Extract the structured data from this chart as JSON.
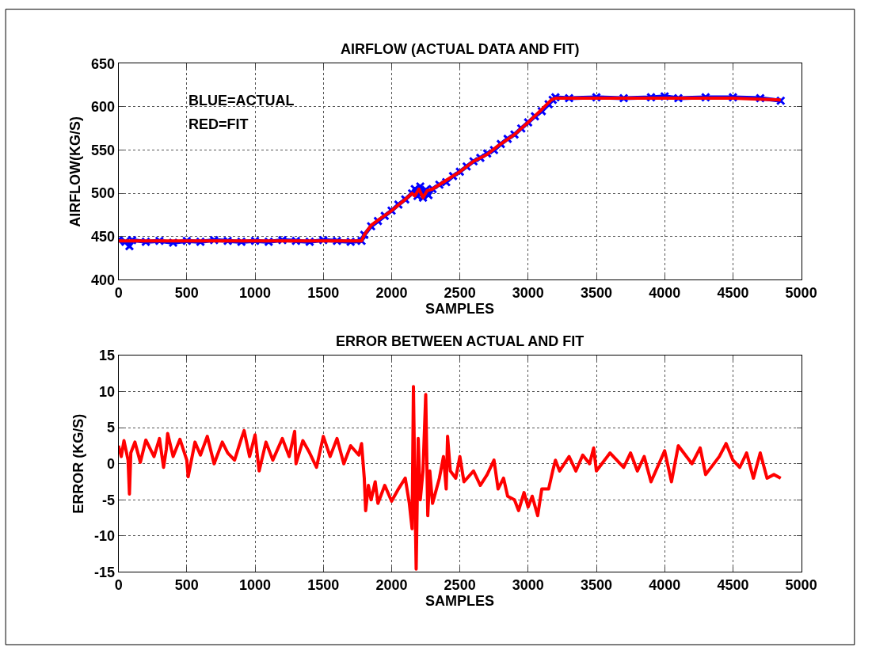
{
  "chart_data": [
    {
      "type": "line",
      "title": "AIRFLOW (ACTUAL DATA AND FIT)",
      "xlabel": "SAMPLES",
      "ylabel": "AIRFLOW(KG/S)",
      "xlim": [
        0,
        5000
      ],
      "ylim": [
        400,
        650
      ],
      "xticks": [
        0,
        500,
        1000,
        1500,
        2000,
        2500,
        3000,
        3500,
        4000,
        4500,
        5000
      ],
      "yticks": [
        400,
        450,
        500,
        550,
        600,
        650
      ],
      "grid": true,
      "line_style": "solid",
      "annotations": [
        "BLUE=ACTUAL",
        "RED=FIT"
      ],
      "series": [
        {
          "color": "#0000ff",
          "marker": "cross",
          "x": [
            0,
            50,
            80,
            100,
            200,
            300,
            400,
            500,
            600,
            700,
            800,
            900,
            1000,
            1100,
            1200,
            1300,
            1400,
            1500,
            1600,
            1700,
            1780,
            1800,
            1850,
            1900,
            1950,
            2000,
            2050,
            2100,
            2150,
            2170,
            2190,
            2210,
            2230,
            2250,
            2270,
            2300,
            2350,
            2400,
            2450,
            2500,
            2550,
            2600,
            2650,
            2700,
            2750,
            2800,
            2850,
            2900,
            2950,
            3000,
            3050,
            3100,
            3150,
            3180,
            3200,
            3300,
            3500,
            3700,
            3900,
            4000,
            4100,
            4300,
            4500,
            4700,
            4850
          ],
          "values": [
            446,
            444,
            439,
            446,
            444,
            445,
            443,
            445,
            444,
            446,
            445,
            444,
            445,
            444,
            446,
            445,
            444,
            446,
            445,
            444,
            445,
            452,
            462,
            468,
            474,
            480,
            487,
            493,
            500,
            505,
            497,
            508,
            495,
            504,
            498,
            505,
            510,
            513,
            520,
            525,
            531,
            537,
            541,
            546,
            550,
            557,
            563,
            568,
            575,
            582,
            589,
            595,
            603,
            608,
            611,
            610,
            611,
            610,
            611,
            612,
            610,
            611,
            611,
            610,
            607
          ]
        },
        {
          "color": "#ff0000",
          "x": [
            0,
            500,
            1000,
            1500,
            1780,
            1800,
            1850,
            1900,
            2000,
            2100,
            2150,
            2170,
            2200,
            2230,
            2260,
            2300,
            2400,
            2500,
            2600,
            2700,
            2780,
            2800,
            2900,
            3000,
            3100,
            3170,
            3200,
            3500,
            4000,
            4500,
            4850
          ],
          "values": [
            445,
            445,
            445,
            445,
            445,
            452,
            463,
            469,
            480,
            493,
            500,
            497,
            505,
            495,
            503,
            505,
            515,
            525,
            537,
            545,
            555,
            557,
            568,
            582,
            597,
            608,
            610,
            610,
            610,
            610,
            608
          ]
        }
      ]
    },
    {
      "type": "line",
      "title": "ERROR BETWEEN ACTUAL AND FIT",
      "xlabel": "SAMPLES",
      "ylabel": "ERROR (KG/S)",
      "xlim": [
        0,
        5000
      ],
      "ylim": [
        -15,
        15
      ],
      "xticks": [
        0,
        500,
        1000,
        1500,
        2000,
        2500,
        3000,
        3500,
        4000,
        4500,
        5000
      ],
      "yticks": [
        -15,
        -10,
        -5,
        0,
        5,
        10,
        15
      ],
      "grid": true,
      "line_style": "solid",
      "series": [
        {
          "color": "#ff0000",
          "x": [
            0,
            20,
            40,
            70,
            80,
            90,
            120,
            160,
            200,
            260,
            300,
            330,
            350,
            360,
            400,
            450,
            500,
            510,
            560,
            600,
            650,
            700,
            760,
            800,
            850,
            900,
            920,
            960,
            1000,
            1030,
            1080,
            1130,
            1200,
            1250,
            1290,
            1300,
            1350,
            1400,
            1450,
            1500,
            1550,
            1600,
            1650,
            1700,
            1760,
            1780,
            1800,
            1810,
            1830,
            1850,
            1880,
            1900,
            1950,
            2000,
            2050,
            2100,
            2130,
            2150,
            2160,
            2170,
            2180,
            2195,
            2210,
            2230,
            2250,
            2265,
            2280,
            2300,
            2350,
            2380,
            2400,
            2410,
            2430,
            2470,
            2500,
            2530,
            2600,
            2650,
            2700,
            2750,
            2780,
            2820,
            2850,
            2900,
            2930,
            2970,
            3000,
            3030,
            3070,
            3100,
            3150,
            3180,
            3200,
            3230,
            3300,
            3350,
            3400,
            3450,
            3480,
            3500,
            3600,
            3700,
            3750,
            3800,
            3850,
            3900,
            4000,
            4050,
            4100,
            4200,
            4260,
            4300,
            4400,
            4450,
            4500,
            4550,
            4600,
            4650,
            4700,
            4750,
            4800,
            4850
          ],
          "values": [
            2.5,
            1.0,
            3.2,
            0.5,
            -4.2,
            1.5,
            3.0,
            0.2,
            3.3,
            1.0,
            3.5,
            -0.5,
            2.0,
            4.2,
            1.0,
            3.4,
            0.5,
            -1.8,
            3.0,
            1.2,
            3.8,
            0.0,
            3.0,
            1.5,
            0.5,
            3.5,
            4.6,
            1.0,
            4.0,
            -1.0,
            3.0,
            0.5,
            3.5,
            1.0,
            4.5,
            0.0,
            3.2,
            1.5,
            -0.5,
            3.8,
            1.0,
            3.5,
            0.0,
            2.5,
            1.2,
            2.8,
            -2.0,
            -6.5,
            -3.0,
            -5.0,
            -2.5,
            -5.5,
            -3.0,
            -5.2,
            -3.5,
            -2.0,
            -5.5,
            -9.0,
            10.7,
            -3.0,
            -14.6,
            3.5,
            -5.0,
            -1.0,
            9.6,
            -7.2,
            -1.0,
            -5.5,
            -2.0,
            1.0,
            -3.5,
            3.8,
            -1.0,
            -2.0,
            1.0,
            -2.5,
            -1.0,
            -3.0,
            -1.5,
            0.5,
            -3.5,
            -2.0,
            -4.5,
            -5.0,
            -6.5,
            -4.0,
            -6.0,
            -4.5,
            -7.2,
            -3.5,
            -3.5,
            -1.0,
            0.5,
            -1.0,
            1.0,
            -1.0,
            1.2,
            0.0,
            2.2,
            -1.0,
            1.5,
            -0.5,
            1.5,
            -1.0,
            1.0,
            -2.5,
            1.8,
            -2.5,
            2.5,
            0.0,
            2.2,
            -1.5,
            1.0,
            2.8,
            0.5,
            -0.5,
            1.5,
            -2.0,
            1.5,
            -2.0,
            -1.5,
            -2.0
          ]
        }
      ]
    }
  ]
}
